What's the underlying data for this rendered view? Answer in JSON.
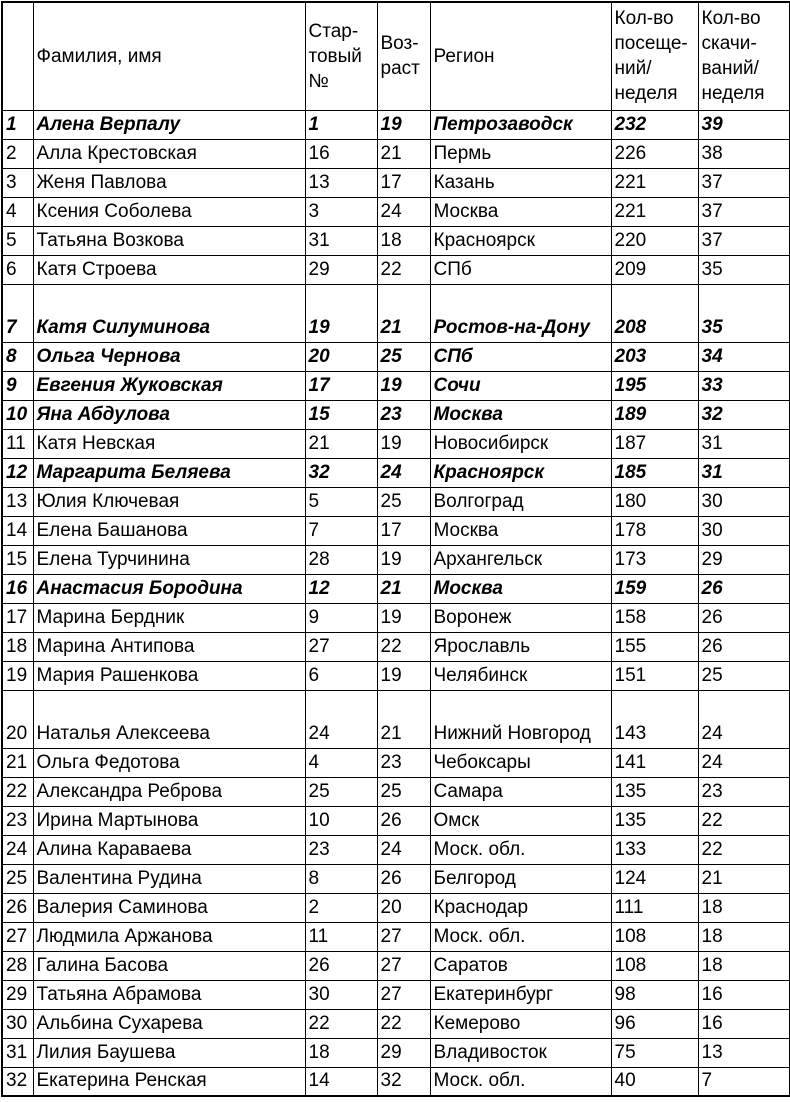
{
  "table": {
    "headers": [
      "",
      "Фамилия, имя",
      "Стар-\nтовый\n№",
      "Воз-\nраст",
      "Регион",
      "Кол-во\nпосеще-\nний/\nнеделя",
      "Кол-во\nскачи-\nваний/\nнеделя"
    ],
    "rows": [
      {
        "num": "1",
        "name": "Алена Верпалу",
        "start": "1",
        "age": "19",
        "region": "Петрозаводск",
        "visits": "232",
        "downloads": "39",
        "bold": true
      },
      {
        "num": "2",
        "name": "Алла Крестовская",
        "start": "16",
        "age": "21",
        "region": "Пермь",
        "visits": "226",
        "downloads": "38",
        "bold": false
      },
      {
        "num": "3",
        "name": "Женя Павлова",
        "start": "13",
        "age": "17",
        "region": "Казань",
        "visits": "221",
        "downloads": "37",
        "bold": false
      },
      {
        "num": "4",
        "name": "Ксения Соболева",
        "start": "3",
        "age": "24",
        "region": "Москва",
        "visits": "221",
        "downloads": "37",
        "bold": false
      },
      {
        "num": "5",
        "name": "Татьяна Возкова",
        "start": "31",
        "age": "18",
        "region": "Красноярск",
        "visits": "220",
        "downloads": "37",
        "bold": false
      },
      {
        "num": "6",
        "name": "Катя Строева",
        "start": "29",
        "age": "22",
        "region": "СПб",
        "visits": "209",
        "downloads": "35",
        "bold": false
      },
      {
        "num": "7",
        "name": "Катя Силуминова",
        "start": "19",
        "age": "21",
        "region": "Ростов-на-Дону",
        "visits": "208",
        "downloads": "35",
        "bold": true
      },
      {
        "num": "8",
        "name": "Ольга Чернова",
        "start": "20",
        "age": "25",
        "region": "СПб",
        "visits": "203",
        "downloads": "34",
        "bold": true
      },
      {
        "num": "9",
        "name": "Евгения Жуковская",
        "start": "17",
        "age": "19",
        "region": "Сочи",
        "visits": "195",
        "downloads": "33",
        "bold": true
      },
      {
        "num": "10",
        "name": "Яна Абдулова",
        "start": "15",
        "age": "23",
        "region": "Москва",
        "visits": "189",
        "downloads": "32",
        "bold": true
      },
      {
        "num": "11",
        "name": "Катя Невская",
        "start": "21",
        "age": "19",
        "region": "Новосибирск",
        "visits": "187",
        "downloads": "31",
        "bold": false
      },
      {
        "num": "12",
        "name": "Маргарита Беляева",
        "start": "32",
        "age": "24",
        "region": "Красноярск",
        "visits": "185",
        "downloads": "31",
        "bold": true
      },
      {
        "num": "13",
        "name": "Юлия Ключевая",
        "start": "5",
        "age": "25",
        "region": "Волгоград",
        "visits": "180",
        "downloads": "30",
        "bold": false
      },
      {
        "num": "14",
        "name": "Елена Башанова",
        "start": "7",
        "age": "17",
        "region": "Москва",
        "visits": "178",
        "downloads": "30",
        "bold": false
      },
      {
        "num": "15",
        "name": "Елена Турчинина",
        "start": "28",
        "age": "19",
        "region": "Архангельск",
        "visits": "173",
        "downloads": "29",
        "bold": false
      },
      {
        "num": "16",
        "name": "Анастасия Бородина",
        "start": "12",
        "age": "21",
        "region": "Москва",
        "visits": "159",
        "downloads": "26",
        "bold": true
      },
      {
        "num": "17",
        "name": "Марина Бердник",
        "start": "9",
        "age": "19",
        "region": "Воронеж",
        "visits": "158",
        "downloads": "26",
        "bold": false
      },
      {
        "num": "18",
        "name": "Марина Антипова",
        "start": "27",
        "age": "22",
        "region": "Ярославль",
        "visits": "155",
        "downloads": "26",
        "bold": false
      },
      {
        "num": "19",
        "name": "Мария Рашенкова",
        "start": "6",
        "age": "19",
        "region": "Челябинск",
        "visits": "151",
        "downloads": "25",
        "bold": false
      },
      {
        "num": "20",
        "name": "Наталья Алексеева",
        "start": "24",
        "age": "21",
        "region": "Нижний Новгород",
        "visits": "143",
        "downloads": "24",
        "bold": false
      },
      {
        "num": "21",
        "name": "Ольга Федотова",
        "start": "4",
        "age": "23",
        "region": "Чебоксары",
        "visits": "141",
        "downloads": "24",
        "bold": false
      },
      {
        "num": "22",
        "name": "Александра Реброва",
        "start": "25",
        "age": "25",
        "region": "Самара",
        "visits": "135",
        "downloads": "23",
        "bold": false
      },
      {
        "num": "23",
        "name": "Ирина Мартынова",
        "start": "10",
        "age": "26",
        "region": "Омск",
        "visits": "135",
        "downloads": "22",
        "bold": false
      },
      {
        "num": "24",
        "name": "Алина Караваева",
        "start": "23",
        "age": "24",
        "region": "Моск. обл.",
        "visits": "133",
        "downloads": "22",
        "bold": false
      },
      {
        "num": "25",
        "name": "Валентина Рудина",
        "start": "8",
        "age": "26",
        "region": "Белгород",
        "visits": "124",
        "downloads": "21",
        "bold": false
      },
      {
        "num": "26",
        "name": "Валерия Саминова",
        "start": "2",
        "age": "20",
        "region": "Краснодар",
        "visits": "111",
        "downloads": "18",
        "bold": false
      },
      {
        "num": "27",
        "name": "Людмила Аржанова",
        "start": "11",
        "age": "27",
        "region": "Моск. обл.",
        "visits": "108",
        "downloads": "18",
        "bold": false
      },
      {
        "num": "28",
        "name": "Галина Басова",
        "start": "26",
        "age": "27",
        "region": "Саратов",
        "visits": "108",
        "downloads": "18",
        "bold": false
      },
      {
        "num": "29",
        "name": "Татьяна Абрамова",
        "start": "30",
        "age": "27",
        "region": "Екатеринбург",
        "visits": "98",
        "downloads": "16",
        "bold": false
      },
      {
        "num": "30",
        "name": "Альбина Сухарева",
        "start": "22",
        "age": "22",
        "region": "Кемерово",
        "visits": "96",
        "downloads": "16",
        "bold": false
      },
      {
        "num": "31",
        "name": "Лилия Баушева",
        "start": "18",
        "age": "29",
        "region": "Владивосток",
        "visits": "75",
        "downloads": "13",
        "bold": false
      },
      {
        "num": "32",
        "name": "Екатерина Ренская",
        "start": "14",
        "age": "32",
        "region": "Моск. обл.",
        "visits": "40",
        "downloads": "7",
        "bold": false
      }
    ]
  }
}
